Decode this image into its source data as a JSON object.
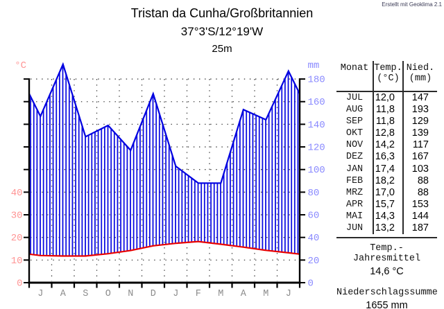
{
  "credit": "Erstellt mit Geoklima 2.1",
  "header": {
    "title": "Tristan da Cunha/Großbritannien",
    "coordinates": "37°3'S/12°19'W",
    "elevation": "25m"
  },
  "chart_data": {
    "type": "area",
    "title": "Tristan da Cunha/Großbritannien",
    "subtitle": "37°3'S/12°19'W 25m",
    "months": [
      "JUL",
      "AUG",
      "SEP",
      "OKT",
      "NOV",
      "DEZ",
      "JAN",
      "FEB",
      "MRZ",
      "APR",
      "MAI",
      "JUN"
    ],
    "month_letters": [
      "J",
      "A",
      "S",
      "O",
      "N",
      "D",
      "J",
      "F",
      "M",
      "A",
      "M",
      "J"
    ],
    "series": [
      {
        "name": "Niederschlag",
        "unit": "mm",
        "axis": "right",
        "values": [
          147,
          193,
          129,
          139,
          117,
          167,
          103,
          88,
          88,
          153,
          144,
          187
        ]
      },
      {
        "name": "Temperatur",
        "unit": "°C",
        "axis": "left",
        "values": [
          12.0,
          11.8,
          11.8,
          12.8,
          14.2,
          16.3,
          17.4,
          18.2,
          17.0,
          15.7,
          14.3,
          13.2
        ]
      }
    ],
    "left_axis": {
      "label": "°C",
      "labeled_ticks": [
        0,
        10,
        20,
        30,
        40
      ],
      "tick_step": 10,
      "tick_max": 90
    },
    "right_axis": {
      "label": "mm",
      "labeled_ticks": [
        0,
        20,
        40,
        60,
        80,
        100,
        120,
        140,
        160,
        180
      ]
    },
    "grid": true,
    "legend_position": "none",
    "colors": {
      "precip": "#0000e0",
      "temp": "#e80000",
      "left_axis_labels": "#ff9494",
      "right_axis_labels": "#8a8aff",
      "month_labels": "#8c8c8c",
      "axis": "#000000"
    }
  },
  "table": {
    "headers": {
      "col1": "Monat",
      "col2": "Temp.",
      "col2_unit": "(°C)",
      "col3": "Nied.",
      "col3_unit": "(mm)"
    },
    "rows": [
      {
        "month": "JUL",
        "temp": "12,0",
        "precip": "147"
      },
      {
        "month": "AUG",
        "temp": "11,8",
        "precip": "193"
      },
      {
        "month": "SEP",
        "temp": "11,8",
        "precip": "129"
      },
      {
        "month": "OKT",
        "temp": "12,8",
        "precip": "139"
      },
      {
        "month": "NOV",
        "temp": "14,2",
        "precip": "117"
      },
      {
        "month": "DEZ",
        "temp": "16,3",
        "precip": "167"
      },
      {
        "month": "JAN",
        "temp": "17,4",
        "precip": "103"
      },
      {
        "month": "FEB",
        "temp": "18,2",
        "precip": "88"
      },
      {
        "month": "MRZ",
        "temp": "17,0",
        "precip": "88"
      },
      {
        "month": "APR",
        "temp": "15,7",
        "precip": "153"
      },
      {
        "month": "MAI",
        "temp": "14,3",
        "precip": "144"
      },
      {
        "month": "JUN",
        "temp": "13,2",
        "precip": "187"
      }
    ],
    "summary": [
      {
        "label": "Temp.-Jahresmittel",
        "value": "14,6 °C"
      },
      {
        "label": "Niederschlagssumme",
        "value": "1655 mm"
      }
    ]
  }
}
